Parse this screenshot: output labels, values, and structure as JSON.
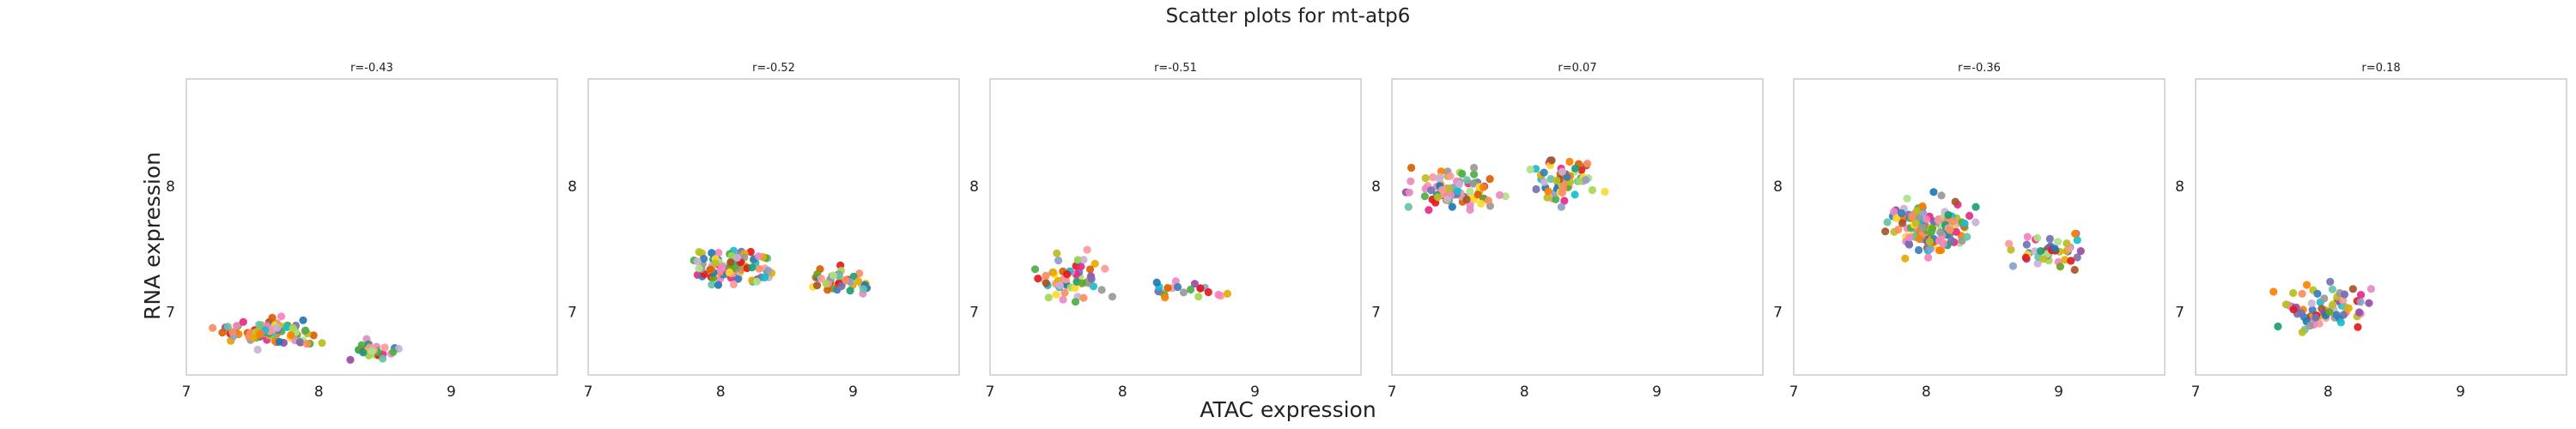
{
  "figure": {
    "title": "Scatter plots for mt-atp6",
    "xlabel": "ATAC expression",
    "ylabel": "RNA expression"
  },
  "chart_data": [
    {
      "type": "scatter",
      "title": "r=-0.43",
      "xlim": [
        7,
        9.8
      ],
      "ylim": [
        6.5,
        8.85
      ],
      "grid": false,
      "x_ticks": [
        "7",
        "8",
        "9"
      ],
      "y_ticks": [
        "7",
        "8"
      ],
      "cluster": {
        "n": 120,
        "seed": 11,
        "ranges": [
          {
            "w": 0.78,
            "x": [
              7.15,
              8.1
            ],
            "y": [
              6.68,
              6.98
            ]
          },
          {
            "w": 0.22,
            "x": [
              8.15,
              8.72
            ],
            "y": [
              6.58,
              6.8
            ]
          }
        ]
      }
    },
    {
      "type": "scatter",
      "title": "r=-0.52",
      "xlim": [
        7,
        9.8
      ],
      "ylim": [
        6.5,
        8.85
      ],
      "grid": false,
      "x_ticks": [
        "7",
        "8",
        "9"
      ],
      "y_ticks": [
        "7",
        "8"
      ],
      "cluster": {
        "n": 150,
        "seed": 23,
        "ranges": [
          {
            "w": 0.72,
            "x": [
              7.7,
              8.5
            ],
            "y": [
              7.15,
              7.58
            ]
          },
          {
            "w": 0.28,
            "x": [
              8.5,
              9.2
            ],
            "y": [
              7.1,
              7.4
            ]
          }
        ]
      }
    },
    {
      "type": "scatter",
      "title": "r=-0.51",
      "xlim": [
        7,
        9.8
      ],
      "ylim": [
        6.5,
        8.85
      ],
      "grid": false,
      "x_ticks": [
        "7",
        "8",
        "9"
      ],
      "y_ticks": [
        "7",
        "8"
      ],
      "cluster": {
        "n": 80,
        "seed": 37,
        "ranges": [
          {
            "w": 0.68,
            "x": [
              7.25,
              7.95
            ],
            "y": [
              7.0,
              7.55
            ]
          },
          {
            "w": 0.32,
            "x": [
              8.0,
              8.95
            ],
            "y": [
              7.05,
              7.28
            ]
          }
        ]
      }
    },
    {
      "type": "scatter",
      "title": "r=0.07",
      "xlim": [
        7,
        9.8
      ],
      "ylim": [
        6.5,
        8.85
      ],
      "grid": false,
      "x_ticks": [
        "7",
        "8",
        "9"
      ],
      "y_ticks": [
        "7",
        "8"
      ],
      "cluster": {
        "n": 140,
        "seed": 41,
        "ranges": [
          {
            "w": 0.6,
            "x": [
              7.0,
              7.9
            ],
            "y": [
              7.75,
              8.18
            ]
          },
          {
            "w": 0.4,
            "x": [
              7.95,
              8.7
            ],
            "y": [
              7.8,
              8.3
            ]
          }
        ]
      }
    },
    {
      "type": "scatter",
      "title": "r=-0.36",
      "xlim": [
        7,
        9.8
      ],
      "ylim": [
        6.5,
        8.85
      ],
      "grid": false,
      "x_ticks": [
        "7",
        "8",
        "9"
      ],
      "y_ticks": [
        "7",
        "8"
      ],
      "cluster": {
        "n": 190,
        "seed": 53,
        "ranges": [
          {
            "w": 0.74,
            "x": [
              7.6,
              8.5
            ],
            "y": [
              7.35,
              8.0
            ]
          },
          {
            "w": 0.26,
            "x": [
              8.5,
              9.35
            ],
            "y": [
              7.25,
              7.7
            ]
          }
        ]
      }
    },
    {
      "type": "scatter",
      "title": "r=0.18",
      "xlim": [
        7,
        9.8
      ],
      "ylim": [
        6.5,
        8.85
      ],
      "grid": false,
      "x_ticks": [
        "7",
        "8",
        "9"
      ],
      "y_ticks": [
        "7",
        "8"
      ],
      "cluster": {
        "n": 70,
        "seed": 67,
        "ranges": [
          {
            "w": 1.0,
            "x": [
              7.45,
              8.5
            ],
            "y": [
              6.78,
              7.35
            ]
          }
        ]
      }
    }
  ],
  "colors": [
    "#e41a1c",
    "#377eb8",
    "#4daf4a",
    "#984ea3",
    "#ff7f00",
    "#ffd92f",
    "#a65628",
    "#f781bf",
    "#999999",
    "#66c2a5",
    "#fc8d62",
    "#8da0cb",
    "#e78ac3",
    "#a6d854",
    "#1b9e77",
    "#d95f02",
    "#7570b3",
    "#e7298a",
    "#66a61e",
    "#e6ab02",
    "#1f78b4",
    "#b2df8a",
    "#fb9a99",
    "#cab2d6",
    "#bcbd22",
    "#17becf"
  ]
}
